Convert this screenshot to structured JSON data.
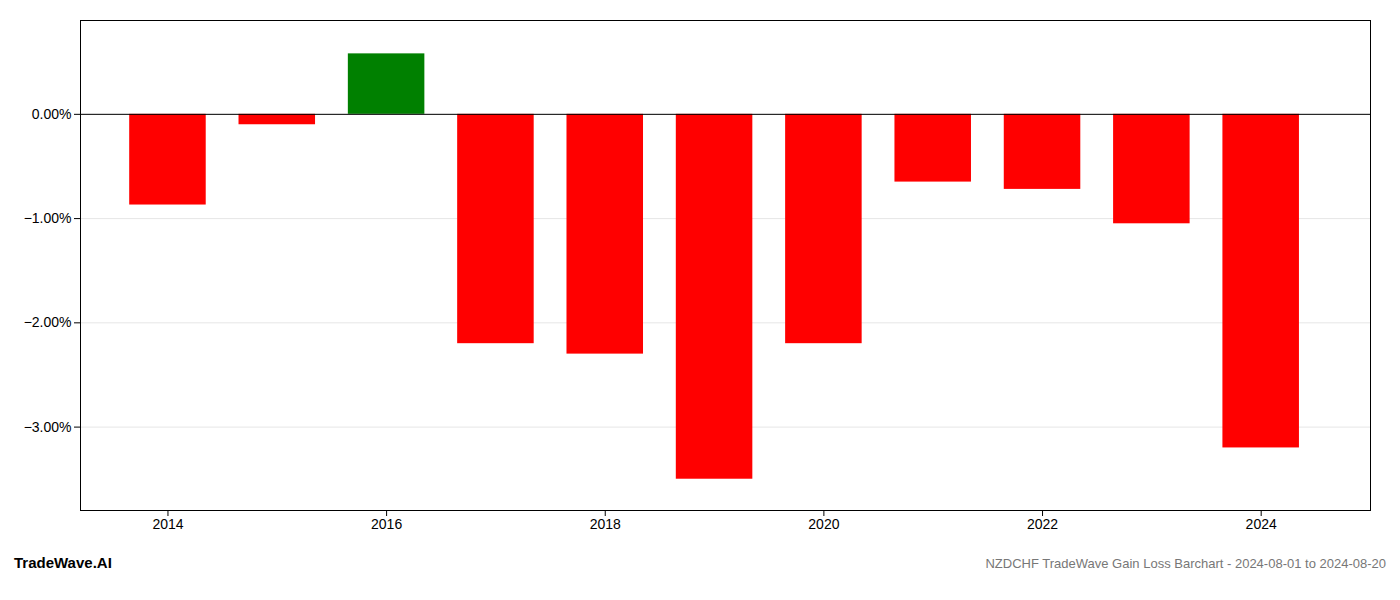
{
  "chart_data": {
    "type": "bar",
    "title": "NZDCHF TradeWave Gain Loss Barchart - 2024-08-01 to 2024-08-20",
    "annotations": [
      {
        "text": "TradeWave.AI"
      }
    ],
    "x": [
      2014,
      2015,
      2016,
      2017,
      2018,
      2019,
      2020,
      2021,
      2022,
      2023,
      2024
    ],
    "values": [
      -0.87,
      -0.1,
      0.58,
      -2.2,
      -2.3,
      -3.5,
      -2.2,
      -0.65,
      -0.72,
      -1.05,
      -3.2
    ],
    "colors": [
      "#ff0000",
      "#ff0000",
      "#008000",
      "#ff0000",
      "#ff0000",
      "#ff0000",
      "#ff0000",
      "#ff0000",
      "#ff0000",
      "#ff0000",
      "#ff0000"
    ],
    "xlim": [
      2013.2,
      2025.0
    ],
    "xticks": [
      2014,
      2016,
      2018,
      2020,
      2022,
      2024
    ],
    "ylim": [
      -3.8,
      0.9
    ],
    "yticks": [
      {
        "value": 0.0,
        "label": "0.00%"
      },
      {
        "value": -1.0,
        "label": "−1.00%"
      },
      {
        "value": -2.0,
        "label": "−2.00%"
      },
      {
        "value": -3.0,
        "label": "−3.00%"
      }
    ],
    "grid": true
  }
}
